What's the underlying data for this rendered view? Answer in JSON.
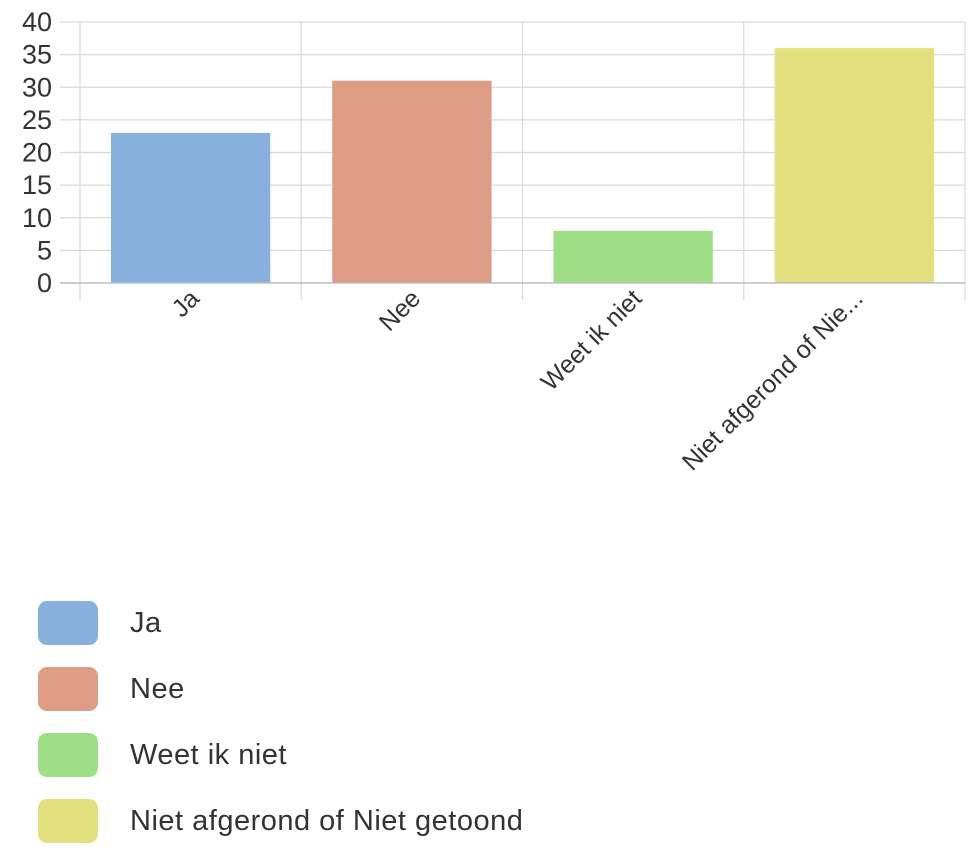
{
  "chart_data": {
    "type": "bar",
    "categories": [
      "Ja",
      "Nee",
      "Weet ik niet",
      "Niet afgerond of Nie..."
    ],
    "values": [
      23,
      31,
      8,
      36
    ],
    "colors": [
      "#88b0dc",
      "#df9c84",
      "#9edf86",
      "#e3e07f"
    ],
    "ylim": [
      0,
      40
    ],
    "yticks": [
      0,
      5,
      10,
      15,
      20,
      25,
      30,
      35,
      40
    ],
    "grid": true,
    "legend_position": "bottom",
    "xlabel": "",
    "ylabel": "",
    "title": ""
  },
  "legend": {
    "items": [
      {
        "label": "Ja",
        "color": "#88b0dc"
      },
      {
        "label": "Nee",
        "color": "#df9c84"
      },
      {
        "label": "Weet ik niet",
        "color": "#9edf86"
      },
      {
        "label": "Niet afgerond of Niet getoond",
        "color": "#e3e07f"
      }
    ]
  }
}
